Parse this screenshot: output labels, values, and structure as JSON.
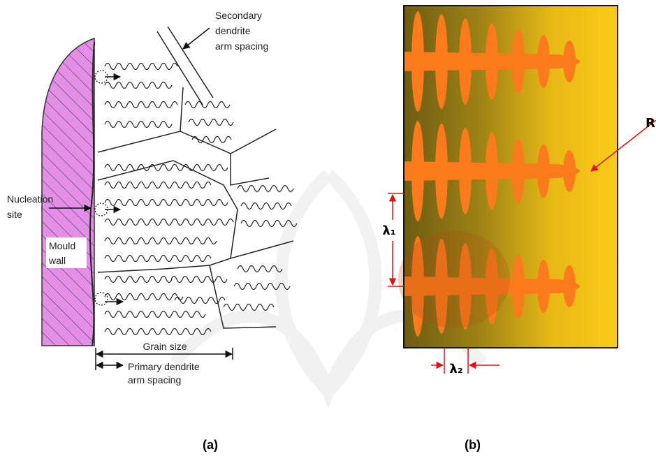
{
  "panel_a": {
    "secondary_label": [
      "Secondary",
      "dendrite",
      "arm spacing"
    ],
    "nucleation_label": [
      "Nucleation",
      "site"
    ],
    "mould_label": [
      "Mould",
      "wall"
    ],
    "grain_size_label": "Grain size",
    "primary_label": [
      "Primary dendrite",
      "arm spacing"
    ],
    "caption": "(a)"
  },
  "panel_b": {
    "lambda1": "λ₁",
    "lambda2": "λ₂",
    "r_label": "R",
    "caption": "(b)"
  }
}
